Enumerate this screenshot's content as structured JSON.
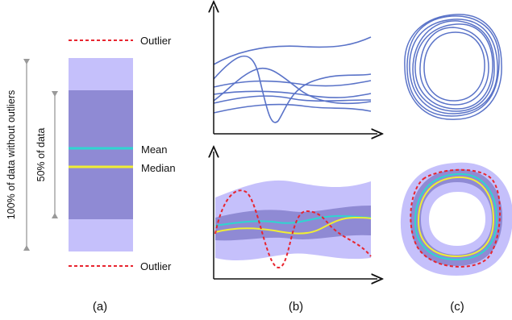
{
  "panel_a": {
    "outlier_top_label": "Outlier",
    "outlier_bottom_label": "Outlier",
    "mean_label": "Mean",
    "median_label": "Median",
    "range_100_label": "100% of data without outliers",
    "range_50_label": "50% of data",
    "caption": "(a)"
  },
  "panel_b": {
    "caption": "(b)"
  },
  "panel_c": {
    "caption": "(c)"
  },
  "colors": {
    "outer_band": "#c5c0fb",
    "inner_band": "#8f8ad4",
    "mean": "#2fd5d0",
    "median": "#f0ee33",
    "outlier": "#e8252f",
    "curves": "#5a73c8",
    "axes": "#111111",
    "range_marker": "#999999"
  }
}
